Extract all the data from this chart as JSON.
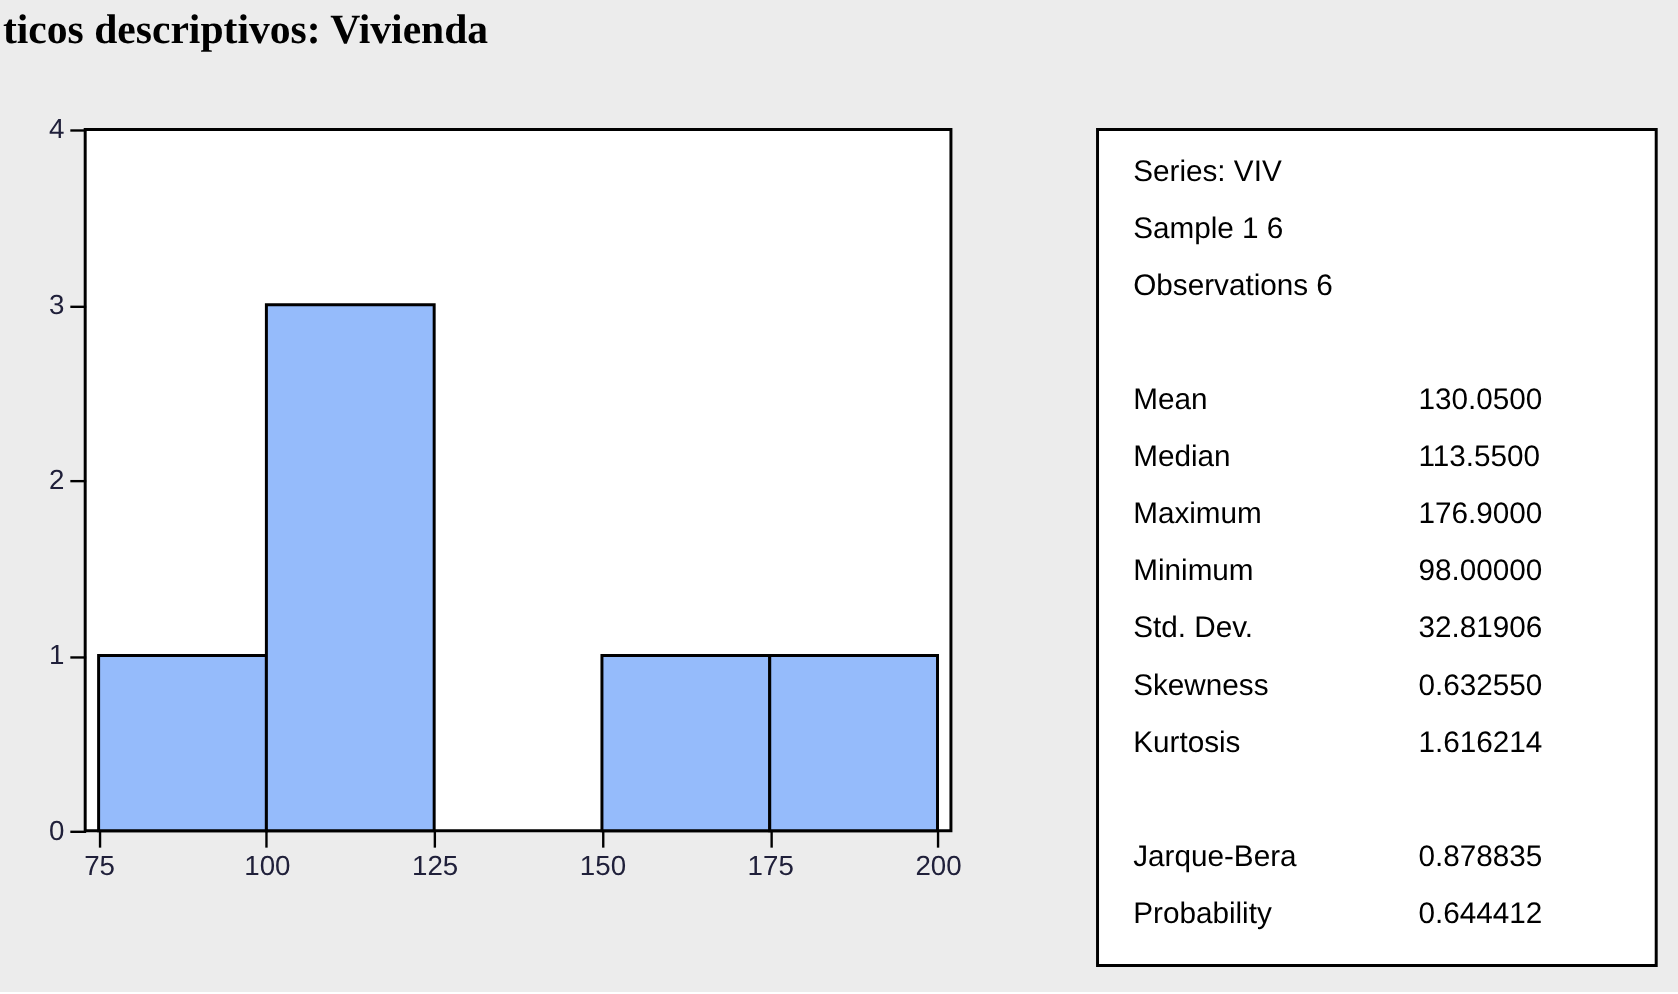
{
  "chart_data": [
    {
      "type": "histogram",
      "title": "ticos descriptivos: Vivienda",
      "bins": [
        75,
        100,
        125,
        150,
        175,
        200
      ],
      "values": [
        1,
        3,
        0,
        1,
        1
      ],
      "color": "#95bbfb",
      "xlim": [
        73,
        202
      ],
      "xticks": [
        75,
        100,
        125,
        150,
        175,
        200
      ],
      "ylim": [
        0,
        4
      ],
      "yticks": [
        0,
        1,
        2,
        3,
        4
      ],
      "grid": false
    },
    {
      "type": "other",
      "annotations": [
        "Series: VIV",
        "Sample 1 6",
        "Observations 6"
      ],
      "categories": [
        "Mean",
        "Median",
        "Maximum",
        "Minimum",
        "Std. Dev.",
        "Skewness",
        "Kurtosis",
        null,
        "Jarque-Bera",
        "Probability"
      ],
      "value_labels": [
        "130.0500",
        "113.5500",
        "176.9000",
        "98.00000",
        "32.81906",
        "0.632550",
        "1.616214",
        null,
        "0.878835",
        "0.644412"
      ]
    }
  ]
}
